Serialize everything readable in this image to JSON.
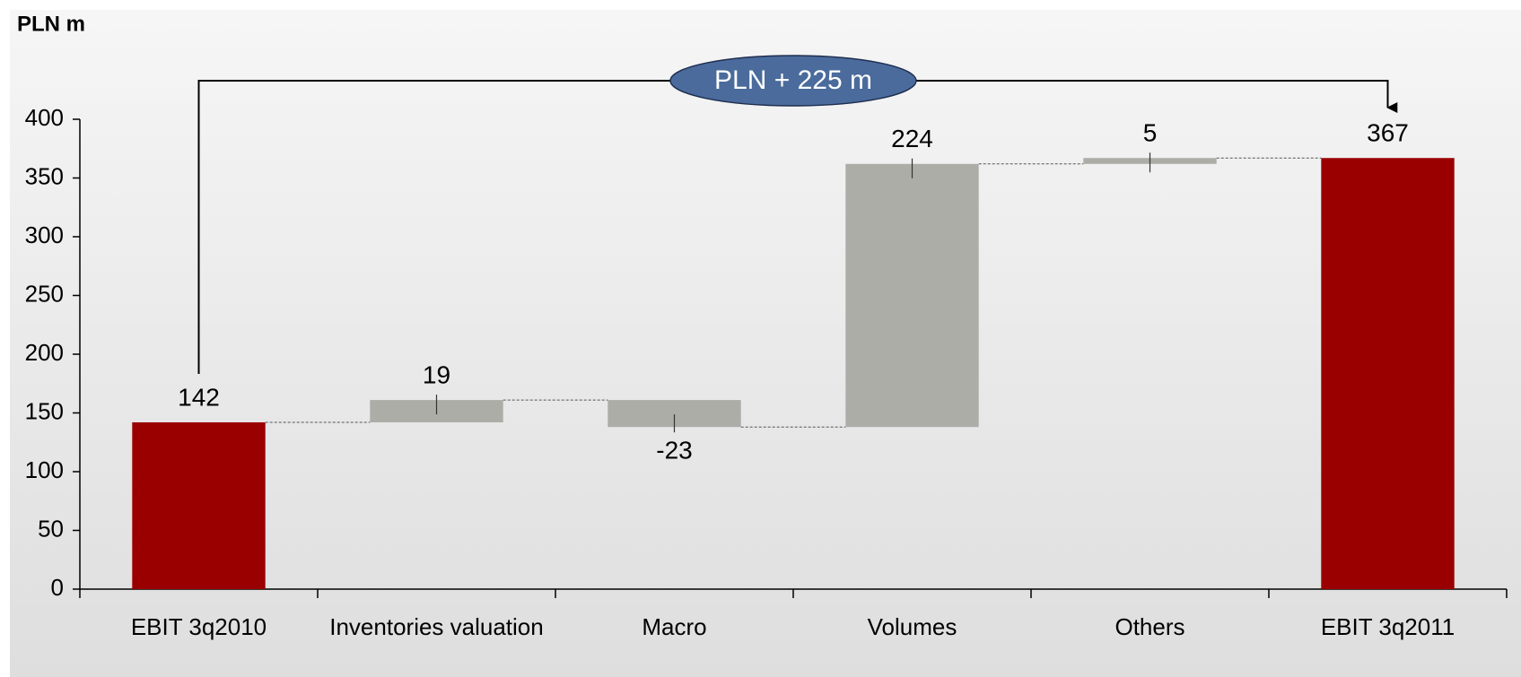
{
  "chart_data": {
    "type": "waterfall",
    "y_label": "PLN m",
    "annotation": "PLN + 225 m",
    "categories": [
      "EBIT 3q2010",
      "Inventories valuation",
      "Macro",
      "Volumes",
      "Others",
      "EBIT 3q2011"
    ],
    "values": [
      142,
      19,
      -23,
      224,
      5,
      367
    ],
    "color": "#9b0000",
    "delta_color": "#adada8",
    "annotation_color": "#4a6b9c",
    "ylim": [
      0,
      400
    ],
    "yticks": [
      0,
      50,
      100,
      150,
      200,
      250,
      300,
      350,
      400
    ],
    "grid": false
  }
}
